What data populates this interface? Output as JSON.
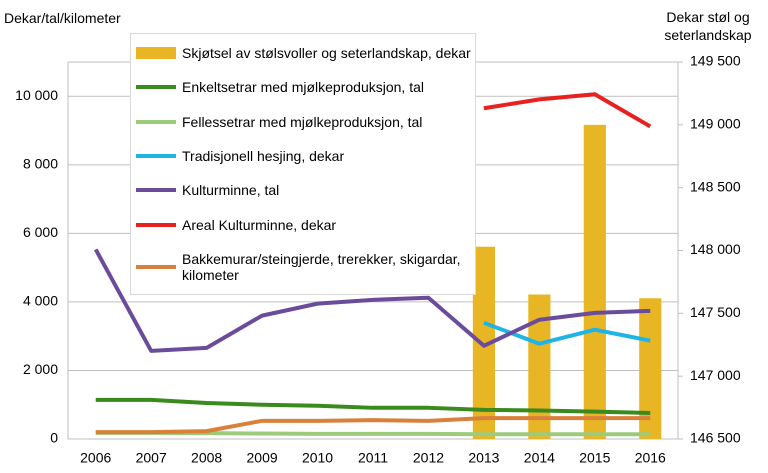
{
  "chart_data": {
    "type": "combo",
    "y_label": "Dekar/tal/kilometer",
    "y2_label": "Dekar støl og seterlandskap",
    "categories": [
      "2006",
      "2007",
      "2008",
      "2009",
      "2010",
      "2011",
      "2012",
      "2013",
      "2014",
      "2015",
      "2016"
    ],
    "ylim": [
      0,
      11000
    ],
    "yticks": [
      0,
      {
        "value": 2000,
        "label": "2 000"
      },
      {
        "value": 4000,
        "label": "4 000"
      },
      {
        "value": 6000,
        "label": "6 000"
      },
      {
        "value": 8000,
        "label": "8 000"
      },
      {
        "value": 10000,
        "label": "10 000"
      }
    ],
    "y2lim": [
      146500,
      149500
    ],
    "y2ticks": [
      {
        "value": 146500,
        "label": "146 500"
      },
      {
        "value": 147000,
        "label": "147 000"
      },
      {
        "value": 147500,
        "label": "147 500"
      },
      {
        "value": 148000,
        "label": "148 000"
      },
      {
        "value": 148500,
        "label": "148 500"
      },
      {
        "value": 149000,
        "label": "149 000"
      },
      {
        "value": 149500,
        "label": "149 500"
      }
    ],
    "grid": true,
    "series": [
      {
        "name": "Skjøtsel av stølsvoller og seterlandskap, dekar",
        "type": "bar",
        "axis": "y2",
        "color": "#e8b624",
        "values": [
          null,
          null,
          null,
          null,
          null,
          null,
          null,
          148030,
          147650,
          149000,
          147620
        ]
      },
      {
        "name": "Enkeltsetrar med mjølkeproduksjon, tal",
        "type": "line",
        "color": "#3a8a1e",
        "values": [
          1140,
          1140,
          1050,
          1000,
          970,
          910,
          910,
          850,
          830,
          800,
          760
        ]
      },
      {
        "name": "Fellessetrar med mjølkeproduksjon, tal",
        "type": "line",
        "color": "#9dcb7a",
        "values": [
          180,
          180,
          170,
          160,
          150,
          150,
          150,
          140,
          140,
          140,
          140
        ]
      },
      {
        "name": "Tradisjonell hesjing, dekar",
        "type": "line",
        "color": "#1fb4e6",
        "values": [
          null,
          null,
          null,
          null,
          null,
          null,
          null,
          3390,
          2780,
          3190,
          2870
        ]
      },
      {
        "name": "Kulturminne, tal",
        "type": "line",
        "color": "#6b4c9a",
        "values": [
          5530,
          2570,
          2660,
          3600,
          3950,
          4060,
          4120,
          2720,
          3480,
          3680,
          3740
        ]
      },
      {
        "name": "Areal Kulturminne, dekar",
        "type": "line",
        "color": "#e8201e",
        "values": [
          null,
          null,
          null,
          null,
          null,
          null,
          null,
          9650,
          9910,
          10060,
          9120
        ]
      },
      {
        "name": "Bakkemurar/steingjerde, trerekker, skigardar, kilometer",
        "type": "line",
        "color": "#d9813a",
        "values": [
          200,
          200,
          230,
          530,
          530,
          550,
          530,
          610,
          610,
          610,
          610
        ]
      }
    ]
  }
}
